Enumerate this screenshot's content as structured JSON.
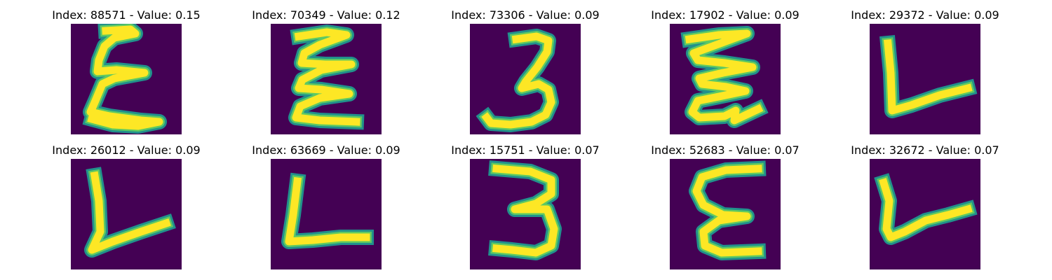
{
  "figure": {
    "colors": {
      "background": "#440154",
      "stroke_edge": "#21918c",
      "stroke_mid": "#5ec962",
      "stroke_core": "#fde725"
    },
    "panels": [
      {
        "title": "Index: 88571 - Value: 0.15",
        "glyph": "E"
      },
      {
        "title": "Index: 70349 - Value: 0.12",
        "glyph": "E"
      },
      {
        "title": "Index: 73306 - Value: 0.09",
        "glyph": "3"
      },
      {
        "title": "Index: 17902 - Value: 0.09",
        "glyph": "E"
      },
      {
        "title": "Index: 29372 - Value: 0.09",
        "glyph": "L"
      },
      {
        "title": "Index: 26012 - Value: 0.09",
        "glyph": "L"
      },
      {
        "title": "Index: 63669 - Value: 0.09",
        "glyph": "L"
      },
      {
        "title": "Index: 15751 - Value: 0.07",
        "glyph": "3"
      },
      {
        "title": "Index: 52683 - Value: 0.07",
        "glyph": "E"
      },
      {
        "title": "Index: 32672 - Value: 0.07",
        "glyph": "L"
      }
    ]
  }
}
